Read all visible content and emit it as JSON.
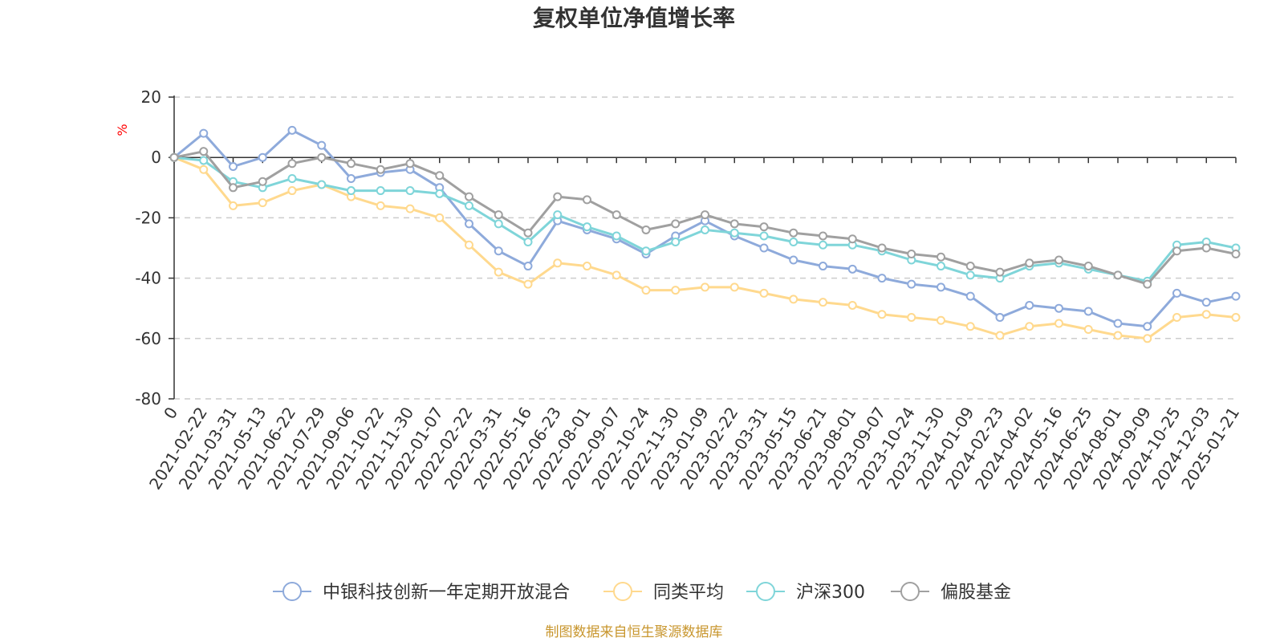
{
  "chart_data": {
    "type": "line",
    "title": "复权单位净值增长率",
    "ylabel": "%",
    "ylim": [
      -80,
      20
    ],
    "yticks": [
      20,
      0,
      -20,
      -40,
      -60,
      -80
    ],
    "grid": true,
    "legend_position": "bottom",
    "categories": [
      "0",
      "2021-02-22",
      "2021-03-31",
      "2021-05-13",
      "2021-06-22",
      "2021-07-29",
      "2021-09-06",
      "2021-10-22",
      "2021-11-30",
      "2022-01-07",
      "2022-02-22",
      "2022-03-31",
      "2022-05-16",
      "2022-06-23",
      "2022-08-01",
      "2022-09-07",
      "2022-10-24",
      "2022-11-30",
      "2023-01-09",
      "2023-02-22",
      "2023-03-31",
      "2023-05-15",
      "2023-06-21",
      "2023-08-01",
      "2023-09-07",
      "2023-10-24",
      "2023-11-30",
      "2024-01-09",
      "2024-02-23",
      "2024-04-02",
      "2024-05-16",
      "2024-06-25",
      "2024-08-01",
      "2024-09-09",
      "2024-10-25",
      "2024-12-03",
      "2025-01-21"
    ],
    "series": [
      {
        "name": "中银科技创新一年定期开放混合",
        "color": "#8eaadb",
        "values": [
          0,
          8,
          -3,
          0,
          9,
          4,
          -7,
          -5,
          -4,
          -10,
          -22,
          -31,
          -36,
          -21,
          -24,
          -27,
          -32,
          -26,
          -21,
          -26,
          -30,
          -34,
          -36,
          -37,
          -40,
          -42,
          -43,
          -46,
          -53,
          -49,
          -50,
          -51,
          -55,
          -56,
          -45,
          -48,
          -46
        ]
      },
      {
        "name": "同类平均",
        "color": "#ffd98e",
        "values": [
          0,
          -4,
          -16,
          -15,
          -11,
          -9,
          -13,
          -16,
          -17,
          -20,
          -29,
          -38,
          -42,
          -35,
          -36,
          -39,
          -44,
          -44,
          -43,
          -43,
          -45,
          -47,
          -48,
          -49,
          -52,
          -53,
          -54,
          -56,
          -59,
          -56,
          -55,
          -57,
          -59,
          -60,
          -53,
          -52,
          -53
        ]
      },
      {
        "name": "沪深300",
        "color": "#7fd5d9",
        "values": [
          0,
          -1,
          -8,
          -10,
          -7,
          -9,
          -11,
          -11,
          -11,
          -12,
          -16,
          -22,
          -28,
          -19,
          -23,
          -26,
          -31,
          -28,
          -24,
          -25,
          -26,
          -28,
          -29,
          -29,
          -31,
          -34,
          -36,
          -39,
          -40,
          -36,
          -35,
          -37,
          -39,
          -41,
          -29,
          -28,
          -30
        ]
      },
      {
        "name": "偏股基金",
        "color": "#a0a0a0",
        "values": [
          0,
          2,
          -10,
          -8,
          -2,
          0,
          -2,
          -4,
          -2,
          -6,
          -13,
          -19,
          -25,
          -13,
          -14,
          -19,
          -24,
          -22,
          -19,
          -22,
          -23,
          -25,
          -26,
          -27,
          -30,
          -32,
          -33,
          -36,
          -38,
          -35,
          -34,
          -36,
          -39,
          -42,
          -31,
          -30,
          -32
        ]
      }
    ]
  },
  "source_note": "制图数据来自恒生聚源数据库"
}
